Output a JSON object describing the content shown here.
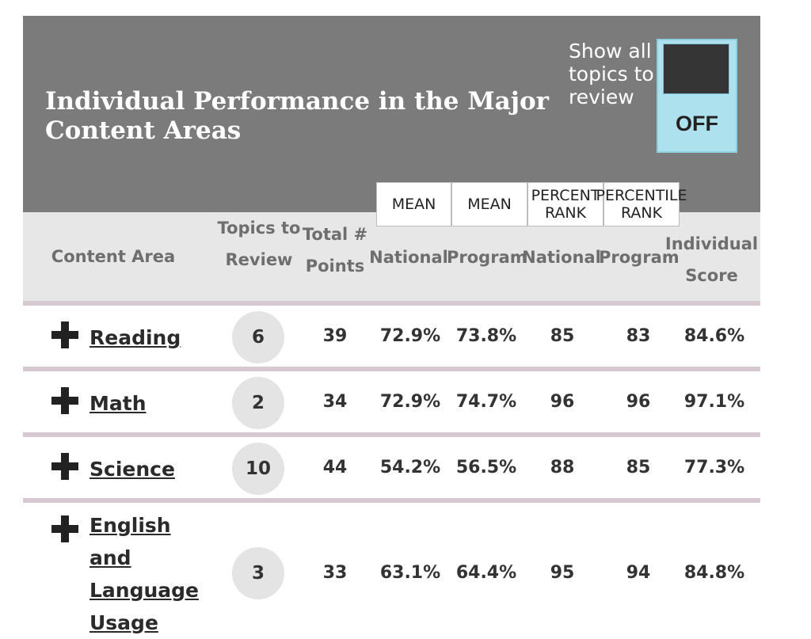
{
  "header": {
    "title": "Individual Performance in the Major Content Areas",
    "toggle_label": "Show all topics to review",
    "toggle_state": "OFF"
  },
  "sub_headers": {
    "mean_national": "MEAN",
    "mean_program": "MEAN",
    "pr_national_1": "PERCENT",
    "pr_national_2": "RANK",
    "pr_program_1": "PERCENTILE",
    "pr_program_2": "RANK"
  },
  "columns": {
    "content_area": "Content Area",
    "topics_to_review": "Topics to Review",
    "total_points": "Total # Points",
    "national": "National",
    "program": "Program",
    "pr_national": "National",
    "pr_program": "Program",
    "individual_score": "Individual Score"
  },
  "rows": [
    {
      "area": "Reading",
      "topics": "6",
      "points": "39",
      "mean_national": "72.9%",
      "mean_program": "73.8%",
      "pr_national": "85",
      "pr_program": "83",
      "score": "84.6%"
    },
    {
      "area": "Math",
      "topics": "2",
      "points": "34",
      "mean_national": "72.9%",
      "mean_program": "74.7%",
      "pr_national": "96",
      "pr_program": "96",
      "score": "97.1%"
    },
    {
      "area": "Science",
      "topics": "10",
      "points": "44",
      "mean_national": "54.2%",
      "mean_program": "56.5%",
      "pr_national": "88",
      "pr_program": "85",
      "score": "77.3%"
    },
    {
      "area": "English and Language Usage",
      "topics": "3",
      "points": "33",
      "mean_national": "63.1%",
      "mean_program": "64.4%",
      "pr_national": "95",
      "pr_program": "94",
      "score": "84.8%"
    }
  ],
  "colors": {
    "header_bg": "#7b7b7b",
    "column_header_bg": "#e7e7e7",
    "toggle_bg": "#aee1ee",
    "divider": "#d7c9d1"
  },
  "icons": {
    "expand": "plus-icon"
  }
}
